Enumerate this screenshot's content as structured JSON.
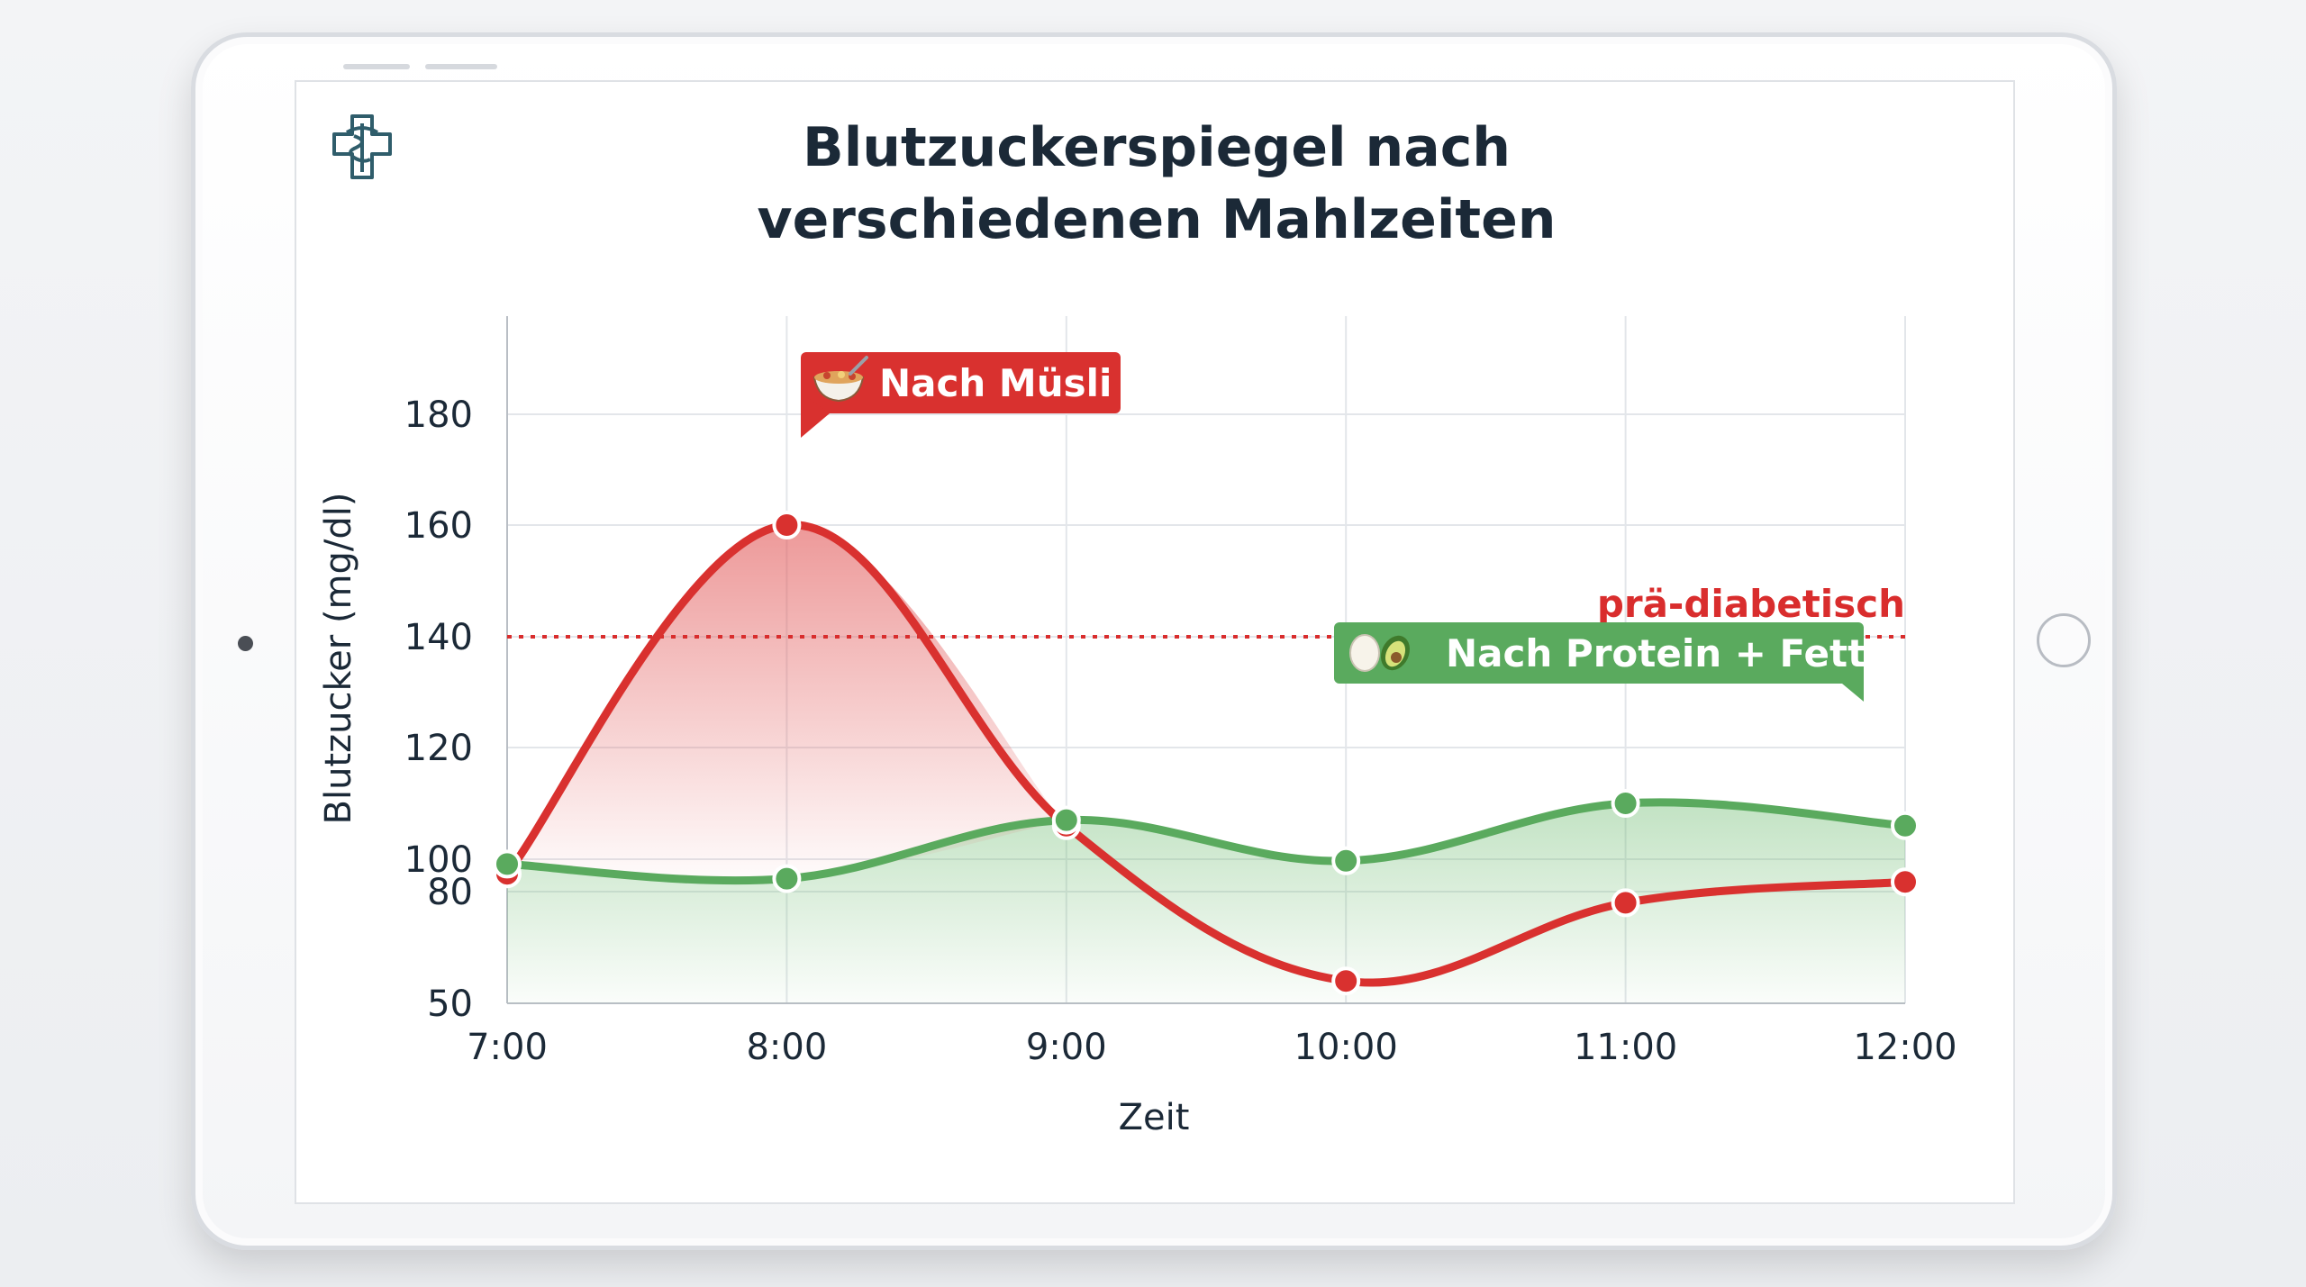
{
  "chart_data": {
    "type": "line",
    "title_lines": [
      "Blutzuckerspiegel nach",
      "verschiedenen Mahlzeiten"
    ],
    "xlabel": "Zeit",
    "ylabel": "Blutzucker (mg/dl)",
    "categories": [
      "7:00",
      "8:00",
      "9:00",
      "10:00",
      "11:00",
      "12:00"
    ],
    "y_ticks": [
      50,
      80,
      100,
      120,
      140,
      160,
      180
    ],
    "ylim": [
      50,
      180
    ],
    "grid": true,
    "threshold": {
      "value": 140,
      "label": "prä-diabetisch",
      "color": "#d92d2d"
    },
    "series": [
      {
        "name": "Nach Müsli",
        "values": [
          91,
          160,
          106,
          56,
          77,
          86
        ],
        "color": "#d9312f",
        "icon": "cereal-bowl-icon"
      },
      {
        "name": "Nach Protein + Fett",
        "values": [
          97,
          88,
          107,
          99,
          110,
          106
        ],
        "color": "#5aaa5e",
        "icon": "egg-avocado-icon"
      }
    ]
  },
  "labels": {
    "muesli": "Nach Müsli",
    "protein": "Nach Protein + Fett"
  },
  "logo": "medical-caduceus-cross-icon"
}
